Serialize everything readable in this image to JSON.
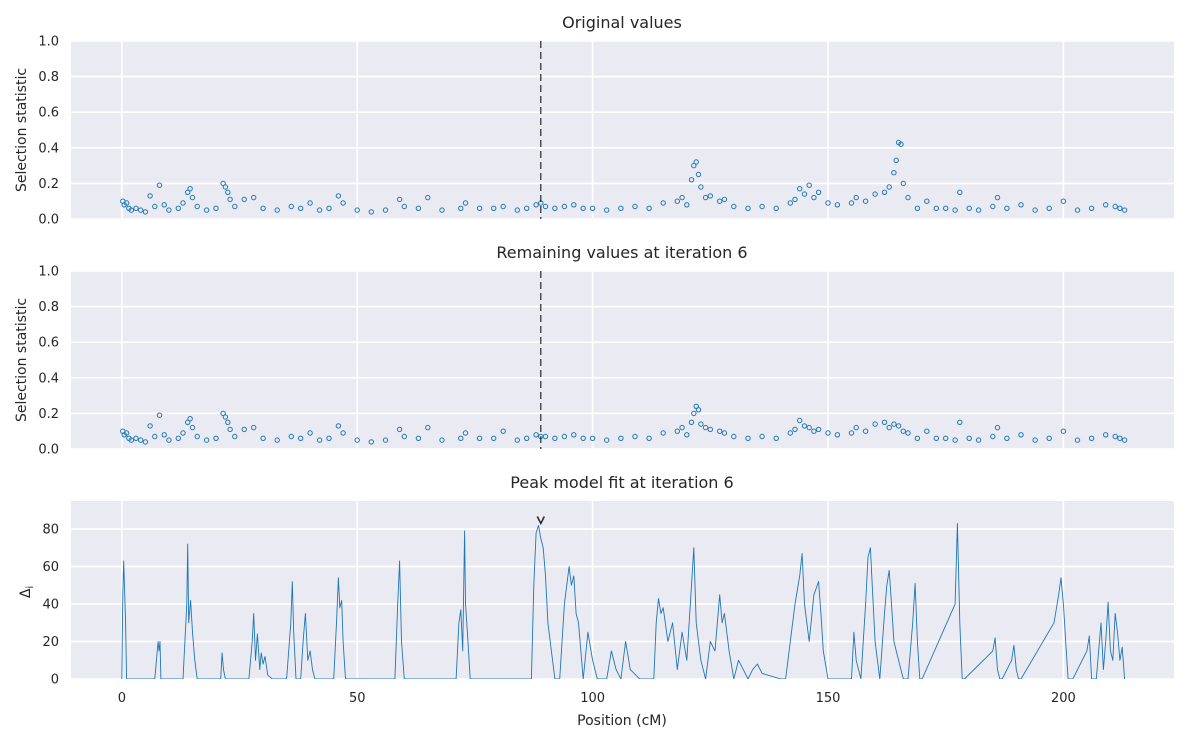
{
  "chart_data": [
    {
      "type": "scatter",
      "title": "Original values",
      "xlabel": "",
      "ylabel": "Selection statistic",
      "xlim": [
        -10.8,
        223.5
      ],
      "ylim": [
        0,
        1
      ],
      "yticks": [
        "0.0",
        "0.2",
        "0.4",
        "0.6",
        "0.8",
        "1.0"
      ],
      "grid": true,
      "marker_color": "#1f77b4",
      "vline_x": 89,
      "points": [
        [
          0.2,
          0.1
        ],
        [
          0.5,
          0.08
        ],
        [
          1.0,
          0.09
        ],
        [
          1.5,
          0.06
        ],
        [
          2.0,
          0.05
        ],
        [
          3.0,
          0.06
        ],
        [
          4.0,
          0.05
        ],
        [
          5.0,
          0.04
        ],
        [
          6.0,
          0.13
        ],
        [
          7.0,
          0.07
        ],
        [
          8.0,
          0.19
        ],
        [
          9.0,
          0.08
        ],
        [
          10.0,
          0.05
        ],
        [
          12.0,
          0.06
        ],
        [
          13.0,
          0.09
        ],
        [
          14.0,
          0.15
        ],
        [
          14.5,
          0.17
        ],
        [
          15.0,
          0.12
        ],
        [
          16.0,
          0.07
        ],
        [
          18.0,
          0.05
        ],
        [
          20.0,
          0.06
        ],
        [
          21.5,
          0.2
        ],
        [
          22.0,
          0.18
        ],
        [
          22.5,
          0.15
        ],
        [
          23.0,
          0.11
        ],
        [
          24.0,
          0.07
        ],
        [
          26.0,
          0.11
        ],
        [
          28.0,
          0.12
        ],
        [
          30.0,
          0.06
        ],
        [
          33.0,
          0.05
        ],
        [
          36.0,
          0.07
        ],
        [
          38.0,
          0.06
        ],
        [
          40.0,
          0.09
        ],
        [
          42.0,
          0.05
        ],
        [
          44.0,
          0.06
        ],
        [
          46.0,
          0.13
        ],
        [
          47.0,
          0.09
        ],
        [
          50.0,
          0.05
        ],
        [
          53.0,
          0.04
        ],
        [
          56.0,
          0.05
        ],
        [
          59.0,
          0.11
        ],
        [
          60.0,
          0.07
        ],
        [
          63.0,
          0.06
        ],
        [
          65.0,
          0.12
        ],
        [
          68.0,
          0.05
        ],
        [
          72.0,
          0.06
        ],
        [
          73.0,
          0.09
        ],
        [
          76.0,
          0.06
        ],
        [
          79.0,
          0.06
        ],
        [
          81.0,
          0.07
        ],
        [
          84.0,
          0.05
        ],
        [
          86.0,
          0.06
        ],
        [
          88.0,
          0.08
        ],
        [
          89.0,
          0.09
        ],
        [
          90.0,
          0.07
        ],
        [
          92.0,
          0.06
        ],
        [
          94.0,
          0.07
        ],
        [
          96.0,
          0.08
        ],
        [
          98.0,
          0.06
        ],
        [
          100.0,
          0.06
        ],
        [
          103.0,
          0.05
        ],
        [
          106.0,
          0.06
        ],
        [
          109.0,
          0.07
        ],
        [
          112.0,
          0.06
        ],
        [
          115.0,
          0.09
        ],
        [
          118.0,
          0.1
        ],
        [
          119.0,
          0.12
        ],
        [
          120.0,
          0.08
        ],
        [
          121.0,
          0.22
        ],
        [
          121.5,
          0.3
        ],
        [
          122.0,
          0.32
        ],
        [
          122.5,
          0.25
        ],
        [
          123.0,
          0.18
        ],
        [
          124.0,
          0.12
        ],
        [
          125.0,
          0.13
        ],
        [
          127.0,
          0.1
        ],
        [
          128.0,
          0.11
        ],
        [
          130.0,
          0.07
        ],
        [
          133.0,
          0.06
        ],
        [
          136.0,
          0.07
        ],
        [
          139.0,
          0.06
        ],
        [
          142.0,
          0.09
        ],
        [
          143.0,
          0.11
        ],
        [
          144.0,
          0.17
        ],
        [
          145.0,
          0.14
        ],
        [
          146.0,
          0.19
        ],
        [
          147.0,
          0.12
        ],
        [
          148.0,
          0.15
        ],
        [
          150.0,
          0.09
        ],
        [
          152.0,
          0.08
        ],
        [
          155.0,
          0.09
        ],
        [
          156.0,
          0.12
        ],
        [
          158.0,
          0.1
        ],
        [
          160.0,
          0.14
        ],
        [
          162.0,
          0.15
        ],
        [
          163.0,
          0.18
        ],
        [
          164.0,
          0.26
        ],
        [
          164.5,
          0.33
        ],
        [
          165.0,
          0.43
        ],
        [
          165.5,
          0.42
        ],
        [
          166.0,
          0.2
        ],
        [
          167.0,
          0.12
        ],
        [
          169.0,
          0.06
        ],
        [
          171.0,
          0.1
        ],
        [
          173.0,
          0.06
        ],
        [
          175.0,
          0.06
        ],
        [
          177.0,
          0.05
        ],
        [
          178.0,
          0.15
        ],
        [
          180.0,
          0.06
        ],
        [
          182.0,
          0.05
        ],
        [
          185.0,
          0.07
        ],
        [
          186.0,
          0.12
        ],
        [
          188.0,
          0.06
        ],
        [
          191.0,
          0.08
        ],
        [
          194.0,
          0.05
        ],
        [
          197.0,
          0.06
        ],
        [
          200.0,
          0.1
        ],
        [
          203.0,
          0.05
        ],
        [
          206.0,
          0.06
        ],
        [
          209.0,
          0.08
        ],
        [
          211.0,
          0.07
        ],
        [
          212.0,
          0.06
        ],
        [
          213.0,
          0.05
        ]
      ]
    },
    {
      "type": "scatter",
      "title": "Remaining values at iteration 6",
      "xlabel": "",
      "ylabel": "Selection statistic",
      "xlim": [
        -10.8,
        223.5
      ],
      "ylim": [
        0,
        1
      ],
      "yticks": [
        "0.0",
        "0.2",
        "0.4",
        "0.6",
        "0.8",
        "1.0"
      ],
      "grid": true,
      "marker_color": "#1f77b4",
      "vline_x": 89,
      "points": [
        [
          0.2,
          0.1
        ],
        [
          0.5,
          0.08
        ],
        [
          1.0,
          0.09
        ],
        [
          1.5,
          0.06
        ],
        [
          2.0,
          0.05
        ],
        [
          3.0,
          0.06
        ],
        [
          4.0,
          0.05
        ],
        [
          5.0,
          0.04
        ],
        [
          6.0,
          0.13
        ],
        [
          7.0,
          0.07
        ],
        [
          8.0,
          0.19
        ],
        [
          9.0,
          0.08
        ],
        [
          10.0,
          0.05
        ],
        [
          12.0,
          0.06
        ],
        [
          13.0,
          0.09
        ],
        [
          14.0,
          0.15
        ],
        [
          14.5,
          0.17
        ],
        [
          15.0,
          0.12
        ],
        [
          16.0,
          0.07
        ],
        [
          18.0,
          0.05
        ],
        [
          20.0,
          0.06
        ],
        [
          21.5,
          0.2
        ],
        [
          22.0,
          0.18
        ],
        [
          22.5,
          0.15
        ],
        [
          23.0,
          0.11
        ],
        [
          24.0,
          0.07
        ],
        [
          26.0,
          0.11
        ],
        [
          28.0,
          0.12
        ],
        [
          30.0,
          0.06
        ],
        [
          33.0,
          0.05
        ],
        [
          36.0,
          0.07
        ],
        [
          38.0,
          0.06
        ],
        [
          40.0,
          0.09
        ],
        [
          42.0,
          0.05
        ],
        [
          44.0,
          0.06
        ],
        [
          46.0,
          0.13
        ],
        [
          47.0,
          0.09
        ],
        [
          50.0,
          0.05
        ],
        [
          53.0,
          0.04
        ],
        [
          56.0,
          0.05
        ],
        [
          59.0,
          0.11
        ],
        [
          60.0,
          0.07
        ],
        [
          63.0,
          0.06
        ],
        [
          65.0,
          0.12
        ],
        [
          68.0,
          0.05
        ],
        [
          72.0,
          0.06
        ],
        [
          73.0,
          0.09
        ],
        [
          76.0,
          0.06
        ],
        [
          79.0,
          0.06
        ],
        [
          81.0,
          0.1
        ],
        [
          84.0,
          0.05
        ],
        [
          86.0,
          0.06
        ],
        [
          88.0,
          0.08
        ],
        [
          89.0,
          0.07
        ],
        [
          90.0,
          0.07
        ],
        [
          92.0,
          0.06
        ],
        [
          94.0,
          0.07
        ],
        [
          96.0,
          0.08
        ],
        [
          98.0,
          0.06
        ],
        [
          100.0,
          0.06
        ],
        [
          103.0,
          0.05
        ],
        [
          106.0,
          0.06
        ],
        [
          109.0,
          0.07
        ],
        [
          112.0,
          0.06
        ],
        [
          115.0,
          0.09
        ],
        [
          118.0,
          0.1
        ],
        [
          119.0,
          0.12
        ],
        [
          120.0,
          0.08
        ],
        [
          121.0,
          0.15
        ],
        [
          121.5,
          0.2
        ],
        [
          122.0,
          0.24
        ],
        [
          122.5,
          0.22
        ],
        [
          123.0,
          0.14
        ],
        [
          124.0,
          0.12
        ],
        [
          125.0,
          0.11
        ],
        [
          127.0,
          0.1
        ],
        [
          128.0,
          0.09
        ],
        [
          130.0,
          0.07
        ],
        [
          133.0,
          0.06
        ],
        [
          136.0,
          0.07
        ],
        [
          139.0,
          0.06
        ],
        [
          142.0,
          0.09
        ],
        [
          143.0,
          0.11
        ],
        [
          144.0,
          0.16
        ],
        [
          145.0,
          0.13
        ],
        [
          146.0,
          0.12
        ],
        [
          147.0,
          0.1
        ],
        [
          148.0,
          0.11
        ],
        [
          150.0,
          0.09
        ],
        [
          152.0,
          0.08
        ],
        [
          155.0,
          0.09
        ],
        [
          156.0,
          0.12
        ],
        [
          158.0,
          0.1
        ],
        [
          160.0,
          0.14
        ],
        [
          162.0,
          0.15
        ],
        [
          163.0,
          0.12
        ],
        [
          164.0,
          0.14
        ],
        [
          165.0,
          0.13
        ],
        [
          166.0,
          0.1
        ],
        [
          167.0,
          0.09
        ],
        [
          169.0,
          0.06
        ],
        [
          171.0,
          0.1
        ],
        [
          173.0,
          0.06
        ],
        [
          175.0,
          0.06
        ],
        [
          177.0,
          0.05
        ],
        [
          178.0,
          0.15
        ],
        [
          180.0,
          0.06
        ],
        [
          182.0,
          0.05
        ],
        [
          185.0,
          0.07
        ],
        [
          186.0,
          0.12
        ],
        [
          188.0,
          0.06
        ],
        [
          191.0,
          0.08
        ],
        [
          194.0,
          0.05
        ],
        [
          197.0,
          0.06
        ],
        [
          200.0,
          0.1
        ],
        [
          203.0,
          0.05
        ],
        [
          206.0,
          0.06
        ],
        [
          209.0,
          0.08
        ],
        [
          211.0,
          0.07
        ],
        [
          212.0,
          0.06
        ],
        [
          213.0,
          0.05
        ]
      ]
    },
    {
      "type": "line",
      "title": "Peak model fit at iteration 6",
      "xlabel": "Position (cM)",
      "ylabel": "Δ",
      "ylabel_sub": "i",
      "xlim": [
        -10.8,
        223.5
      ],
      "ylim": [
        0,
        95
      ],
      "xticks": [
        "0",
        "50",
        "100",
        "150",
        "200"
      ],
      "yticks": [
        "0",
        "20",
        "40",
        "60",
        "80"
      ],
      "grid": true,
      "line_color": "#1f77b4",
      "peak_marker": [
        89,
        83
      ],
      "x": [
        0,
        0.2,
        0.4,
        0.8,
        1,
        7,
        7.7,
        7.9,
        8.1,
        8.3,
        13,
        13.8,
        14,
        14.2,
        14.6,
        15,
        15.5,
        16,
        21,
        21.3,
        21.6,
        22,
        27,
        27.7,
        28,
        28.4,
        28.8,
        29.3,
        29.6,
        30,
        30.4,
        31,
        32,
        35,
        35.9,
        36.2,
        36.5,
        37,
        38,
        38.5,
        39,
        39.5,
        40,
        40.5,
        41,
        45,
        45.6,
        46,
        46.3,
        46.7,
        47,
        47.5,
        58,
        58.6,
        59,
        59.4,
        60,
        71,
        71.6,
        72,
        72.4,
        72.8,
        73,
        73.4,
        74,
        87,
        87.5,
        88,
        88.5,
        89,
        89.5,
        90,
        90.5,
        91,
        92,
        93,
        94,
        95,
        95.5,
        96,
        96.5,
        97,
        98,
        99,
        100,
        101,
        103,
        104,
        105,
        106,
        107,
        108,
        110,
        112,
        113,
        113.5,
        114,
        114.5,
        115,
        116,
        117,
        118,
        119,
        120,
        121,
        121.5,
        122,
        122.5,
        123,
        124,
        125,
        126,
        127,
        127.5,
        128,
        129,
        130,
        131,
        132,
        133,
        134,
        135,
        136,
        140,
        141,
        142,
        143,
        144,
        144.5,
        145,
        146,
        147,
        148,
        148.5,
        149,
        150,
        155,
        155.5,
        156,
        157,
        158,
        158.5,
        159,
        159.5,
        160,
        161,
        162,
        162.5,
        163,
        163.5,
        164,
        165,
        166,
        167,
        168,
        168.5,
        169,
        169.5,
        170,
        177,
        177.5,
        178,
        178.5,
        179,
        185,
        185.5,
        186,
        186.5,
        187,
        189,
        189.5,
        190,
        190.5,
        191,
        198,
        199,
        199.5,
        200,
        200.5,
        201,
        202,
        205,
        205.5,
        206,
        207,
        208,
        208.5,
        209,
        209.5,
        210,
        210.5,
        211,
        211.5,
        212,
        212.5,
        213
      ],
      "y": [
        0,
        45,
        63,
        30,
        0,
        0,
        20,
        15,
        20,
        0,
        0,
        40,
        72,
        30,
        42,
        25,
        10,
        0,
        0,
        14,
        5,
        0,
        0,
        20,
        35,
        10,
        24,
        5,
        14,
        8,
        12,
        2,
        0,
        0,
        30,
        52,
        25,
        0,
        0,
        20,
        35,
        10,
        15,
        5,
        0,
        0,
        30,
        54,
        38,
        42,
        20,
        0,
        0,
        40,
        63,
        20,
        0,
        0,
        30,
        37,
        15,
        79,
        40,
        25,
        0,
        0,
        50,
        78,
        82,
        75,
        70,
        55,
        30,
        20,
        0,
        0,
        40,
        60,
        50,
        55,
        35,
        30,
        0,
        25,
        10,
        0,
        0,
        15,
        5,
        0,
        20,
        5,
        0,
        0,
        0,
        30,
        43,
        35,
        38,
        20,
        30,
        5,
        25,
        10,
        50,
        70,
        30,
        20,
        10,
        0,
        20,
        15,
        45,
        30,
        35,
        15,
        0,
        10,
        5,
        0,
        5,
        8,
        3,
        0,
        0,
        20,
        40,
        55,
        67,
        40,
        20,
        45,
        52,
        35,
        15,
        0,
        0,
        25,
        10,
        0,
        40,
        65,
        70,
        45,
        20,
        0,
        35,
        50,
        58,
        40,
        20,
        10,
        0,
        0,
        30,
        51,
        20,
        0,
        0,
        40,
        83,
        30,
        0,
        0,
        15,
        22,
        5,
        0,
        0,
        10,
        18,
        5,
        0,
        0,
        30,
        45,
        54,
        40,
        20,
        0,
        0,
        15,
        23,
        0,
        0,
        30,
        5,
        20,
        41,
        15,
        10,
        35,
        25,
        10,
        17,
        0
      ],
      "x_ticks": [
        0,
        50,
        100,
        150,
        200
      ]
    }
  ]
}
